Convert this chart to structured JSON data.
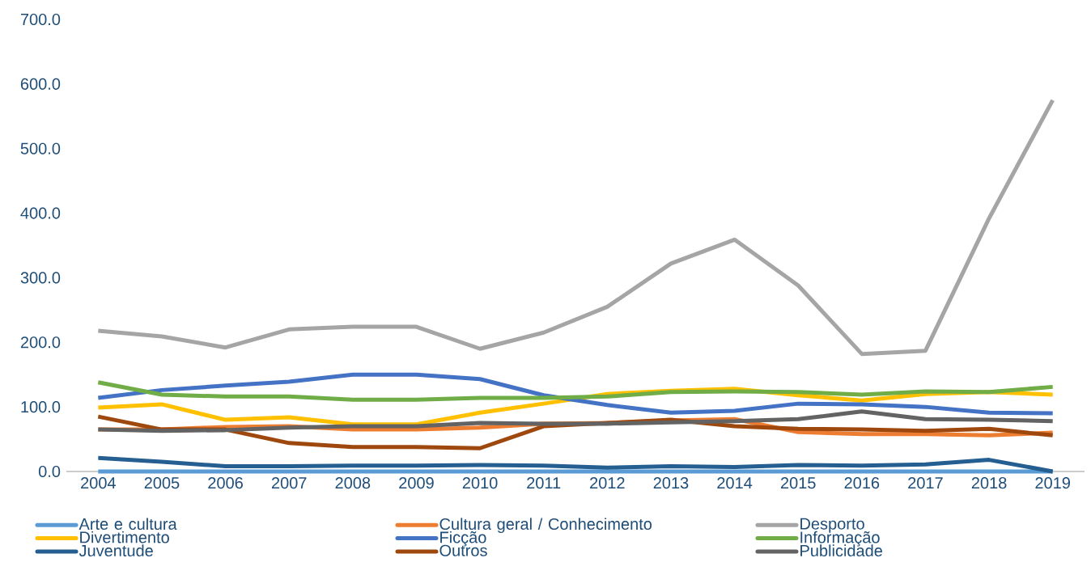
{
  "chart_data": {
    "type": "line",
    "categories": [
      "2004",
      "2005",
      "2006",
      "2007",
      "2008",
      "2009",
      "2010",
      "2011",
      "2012",
      "2013",
      "2014",
      "2015",
      "2016",
      "2017",
      "2018",
      "2019"
    ],
    "series": [
      {
        "name": "Arte e cultura",
        "color": "#5b9bd5",
        "values": [
          0,
          0,
          0,
          0,
          0,
          0,
          0,
          0,
          0,
          0,
          0,
          0,
          0,
          0,
          0,
          0
        ]
      },
      {
        "name": "Cultura geral / Conhecimento",
        "color": "#ed7d31",
        "values": [
          65,
          65,
          69,
          70,
          65,
          65,
          68,
          74,
          75,
          79,
          81,
          61,
          58,
          58,
          56,
          60
        ]
      },
      {
        "name": "Desporto",
        "color": "#a5a5a5",
        "values": [
          218,
          209,
          192,
          220,
          224,
          224,
          190,
          215,
          255,
          322,
          359,
          288,
          182,
          187,
          392,
          575
        ]
      },
      {
        "name": "Divertimento",
        "color": "#ffc000",
        "values": [
          99,
          104,
          80,
          84,
          73,
          73,
          91,
          105,
          120,
          125,
          128,
          118,
          110,
          120,
          123,
          119
        ]
      },
      {
        "name": "Ficção",
        "color": "#4472c4",
        "values": [
          114,
          126,
          133,
          139,
          150,
          150,
          143,
          118,
          103,
          91,
          94,
          105,
          104,
          100,
          91,
          90
        ]
      },
      {
        "name": "Informação",
        "color": "#70ad47",
        "values": [
          138,
          119,
          116,
          116,
          111,
          111,
          114,
          114,
          116,
          123,
          124,
          123,
          119,
          124,
          123,
          131
        ]
      },
      {
        "name": "Juventude",
        "color": "#255e91",
        "values": [
          21,
          15,
          8,
          8,
          9,
          9,
          10,
          9,
          6,
          8,
          7,
          10,
          9,
          11,
          18,
          0
        ]
      },
      {
        "name": "Outros",
        "color": "#9e480e",
        "values": [
          85,
          65,
          65,
          44,
          38,
          38,
          36,
          70,
          75,
          80,
          70,
          66,
          65,
          63,
          66,
          56
        ]
      },
      {
        "name": "Publicidade",
        "color": "#636363",
        "values": [
          65,
          63,
          64,
          68,
          70,
          70,
          75,
          74,
          74,
          76,
          78,
          81,
          93,
          81,
          80,
          78
        ]
      }
    ],
    "ylim": [
      0,
      700
    ],
    "yticks": [
      {
        "value": 0,
        "label": "0.0"
      },
      {
        "value": 100,
        "label": "100.0"
      },
      {
        "value": 200,
        "label": "200.0"
      },
      {
        "value": 300,
        "label": "300.0"
      },
      {
        "value": 400,
        "label": "400.0"
      },
      {
        "value": 500,
        "label": "500.0"
      },
      {
        "value": 600,
        "label": "600.0"
      },
      {
        "value": 700,
        "label": "700.0"
      }
    ],
    "legend": "bottom",
    "marker": "none",
    "line_style": "solid"
  }
}
